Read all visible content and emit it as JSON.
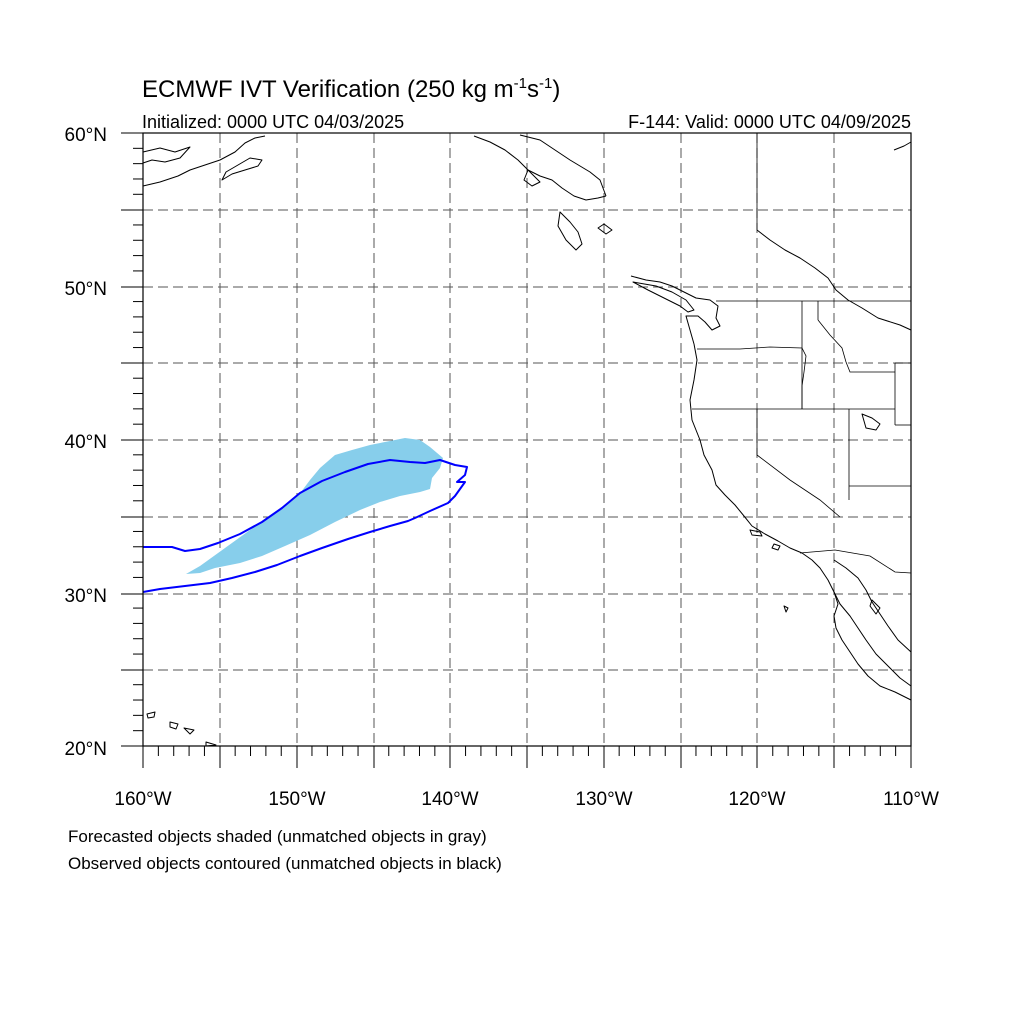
{
  "header": {
    "title_main": "ECMWF IVT Verification (250 kg m",
    "title_sup1": "-1",
    "title_mid": "s",
    "title_sup2": "-1",
    "title_end": ")",
    "initialized": "Initialized: 0000 UTC 04/03/2025",
    "valid": "F-144: Valid: 0000 UTC 04/09/2025"
  },
  "map": {
    "lon_range": [
      -160,
      -110
    ],
    "lat_range": [
      20,
      60
    ],
    "lon_labels": [
      "160°W",
      "150°W",
      "140°W",
      "130°W",
      "120°W",
      "110°W"
    ],
    "lat_labels": [
      "60°N",
      "50°N",
      "40°N",
      "30°N",
      "20°N"
    ],
    "forecast_object_color": "#87ceeb",
    "observed_contour_color": "#0000ff"
  },
  "footer": {
    "line1": "Forecasted objects shaded (unmatched objects in gray)",
    "line2": "Observed objects contoured (unmatched objects in black)"
  }
}
